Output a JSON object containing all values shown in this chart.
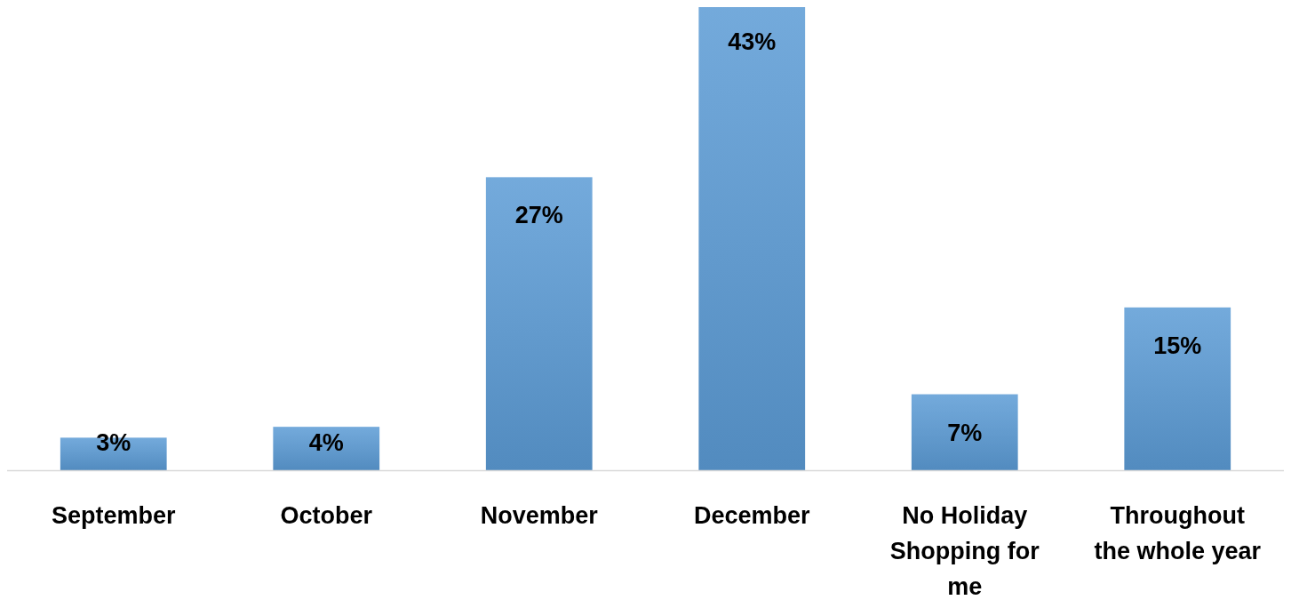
{
  "chart_data": {
    "type": "bar",
    "categories": [
      "September",
      "October",
      "November",
      "December",
      "No Holiday Shopping for me",
      "Throughout the whole year"
    ],
    "values": [
      3,
      4,
      27,
      43,
      7,
      15
    ],
    "value_labels": [
      "3%",
      "4%",
      "27%",
      "43%",
      "7%",
      "15%"
    ],
    "color": "#5b9bd5"
  }
}
